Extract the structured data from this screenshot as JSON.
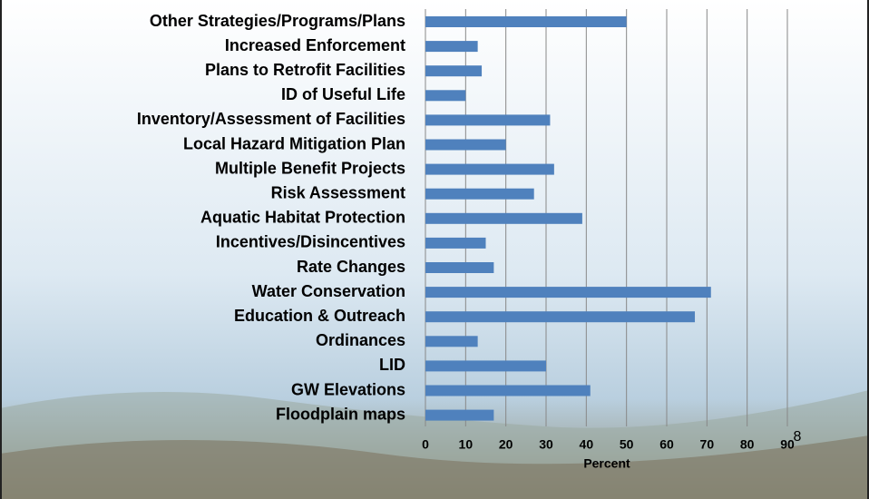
{
  "chart_data": {
    "type": "hbar",
    "categories": [
      "Other Strategies/Programs/Plans",
      "Increased Enforcement",
      "Plans to Retrofit Facilities",
      "ID of Useful Life",
      "Inventory/Assessment of Facilities",
      "Local Hazard Mitigation Plan",
      "Multiple Benefit Projects",
      "Risk Assessment",
      "Aquatic Habitat Protection",
      "Incentives/Disincentives",
      "Rate Changes",
      "Water Conservation",
      "Education & Outreach",
      "Ordinances",
      "LID",
      "GW Elevations",
      "Floodplain maps"
    ],
    "values": [
      50,
      13,
      14,
      10,
      31,
      20,
      32,
      27,
      39,
      15,
      17,
      71,
      67,
      13,
      30,
      41,
      17
    ],
    "color": "#4f81bd",
    "x_label": "Percent",
    "xlim": [
      0,
      90
    ],
    "xticks": [
      0,
      10,
      20,
      30,
      40,
      50,
      60,
      70,
      80,
      90
    ],
    "grid": true
  },
  "slide_number": "8"
}
